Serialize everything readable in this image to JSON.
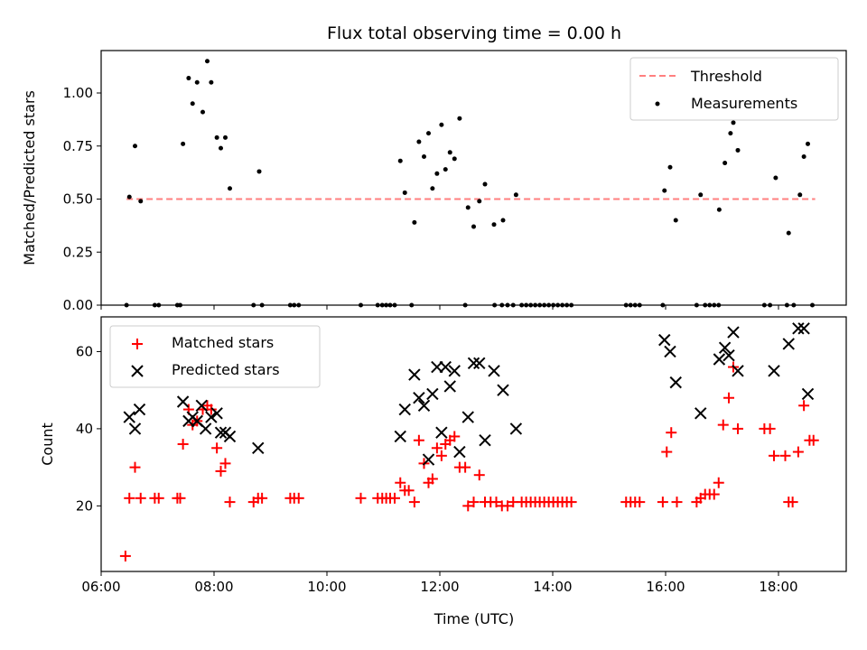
{
  "chart_data": [
    {
      "type": "scatter",
      "title": "Flux total observing time = 0.00 h",
      "xlabel": "",
      "ylabel": "Matched/Predicted stars",
      "xlim": [
        6.0,
        19.2
      ],
      "ylim": [
        0.0,
        1.2
      ],
      "yticks": [
        0.0,
        0.25,
        0.5,
        0.75,
        1.0
      ],
      "ytick_labels": [
        "0.00",
        "0.25",
        "0.50",
        "0.75",
        "1.00"
      ],
      "legend_position": "top-right",
      "threshold": {
        "name": "Threshold",
        "value": 0.5,
        "x_range": [
          6.45,
          18.65
        ],
        "color": "#ff7f7f"
      },
      "series": [
        {
          "name": "Measurements",
          "marker": "dot",
          "color": "#000000",
          "points": [
            [
              6.5,
              0.51
            ],
            [
              6.6,
              0.75
            ],
            [
              6.7,
              0.49
            ],
            [
              7.45,
              0.76
            ],
            [
              7.55,
              1.07
            ],
            [
              7.62,
              0.95
            ],
            [
              7.7,
              1.05
            ],
            [
              7.8,
              0.91
            ],
            [
              7.88,
              1.15
            ],
            [
              7.95,
              1.05
            ],
            [
              8.05,
              0.79
            ],
            [
              8.12,
              0.74
            ],
            [
              8.2,
              0.79
            ],
            [
              8.28,
              0.55
            ],
            [
              8.8,
              0.63
            ],
            [
              11.3,
              0.68
            ],
            [
              11.38,
              0.53
            ],
            [
              11.55,
              0.39
            ],
            [
              11.63,
              0.77
            ],
            [
              11.72,
              0.7
            ],
            [
              11.8,
              0.81
            ],
            [
              11.87,
              0.55
            ],
            [
              11.95,
              0.62
            ],
            [
              12.03,
              0.85
            ],
            [
              12.1,
              0.64
            ],
            [
              12.18,
              0.72
            ],
            [
              12.26,
              0.69
            ],
            [
              12.35,
              0.88
            ],
            [
              12.5,
              0.46
            ],
            [
              12.6,
              0.37
            ],
            [
              12.7,
              0.49
            ],
            [
              12.8,
              0.57
            ],
            [
              12.96,
              0.38
            ],
            [
              13.12,
              0.4
            ],
            [
              13.35,
              0.52
            ],
            [
              15.98,
              0.54
            ],
            [
              16.08,
              0.65
            ],
            [
              16.18,
              0.4
            ],
            [
              16.62,
              0.52
            ],
            [
              16.95,
              0.45
            ],
            [
              17.05,
              0.67
            ],
            [
              17.15,
              0.81
            ],
            [
              17.2,
              0.86
            ],
            [
              17.28,
              0.73
            ],
            [
              17.95,
              0.6
            ],
            [
              18.18,
              0.34
            ],
            [
              18.38,
              0.52
            ],
            [
              18.45,
              0.7
            ],
            [
              18.52,
              0.76
            ],
            [
              6.45,
              0
            ],
            [
              6.95,
              0
            ],
            [
              7.02,
              0
            ],
            [
              7.35,
              0
            ],
            [
              7.4,
              0
            ],
            [
              8.7,
              0
            ],
            [
              8.85,
              0
            ],
            [
              9.35,
              0
            ],
            [
              9.42,
              0
            ],
            [
              9.5,
              0
            ],
            [
              10.6,
              0
            ],
            [
              10.9,
              0
            ],
            [
              10.98,
              0
            ],
            [
              11.05,
              0
            ],
            [
              11.12,
              0
            ],
            [
              11.2,
              0
            ],
            [
              11.5,
              0
            ],
            [
              12.45,
              0
            ],
            [
              12.97,
              0
            ],
            [
              13.1,
              0
            ],
            [
              13.2,
              0
            ],
            [
              13.3,
              0
            ],
            [
              13.45,
              0
            ],
            [
              13.53,
              0
            ],
            [
              13.61,
              0
            ],
            [
              13.69,
              0
            ],
            [
              13.77,
              0
            ],
            [
              13.85,
              0
            ],
            [
              13.93,
              0
            ],
            [
              14.01,
              0
            ],
            [
              14.09,
              0
            ],
            [
              14.17,
              0
            ],
            [
              14.25,
              0
            ],
            [
              14.33,
              0
            ],
            [
              15.3,
              0
            ],
            [
              15.38,
              0
            ],
            [
              15.46,
              0
            ],
            [
              15.54,
              0
            ],
            [
              15.95,
              0
            ],
            [
              16.55,
              0
            ],
            [
              16.7,
              0
            ],
            [
              16.78,
              0
            ],
            [
              16.86,
              0
            ],
            [
              16.94,
              0
            ],
            [
              17.75,
              0
            ],
            [
              17.85,
              0
            ],
            [
              18.15,
              0
            ],
            [
              18.27,
              0
            ],
            [
              18.6,
              0
            ]
          ]
        }
      ]
    },
    {
      "type": "scatter",
      "title": "",
      "xlabel": "Time (UTC)",
      "ylabel": "Count",
      "xlim": [
        6.0,
        19.2
      ],
      "ylim": [
        3,
        69
      ],
      "yticks": [
        20,
        40,
        60
      ],
      "ytick_labels": [
        "20",
        "40",
        "60"
      ],
      "xticks": [
        6,
        8,
        10,
        12,
        14,
        16,
        18
      ],
      "xtick_labels": [
        "06:00",
        "08:00",
        "10:00",
        "12:00",
        "14:00",
        "16:00",
        "18:00"
      ],
      "legend_position": "top-left",
      "series": [
        {
          "name": "Matched stars",
          "marker": "plus",
          "color": "#ff0000",
          "points": [
            [
              6.43,
              7
            ],
            [
              6.5,
              22
            ],
            [
              6.6,
              30
            ],
            [
              6.7,
              22
            ],
            [
              6.95,
              22
            ],
            [
              7.02,
              22
            ],
            [
              7.35,
              22
            ],
            [
              7.4,
              22
            ],
            [
              7.45,
              36
            ],
            [
              7.55,
              45
            ],
            [
              7.62,
              41
            ],
            [
              7.7,
              42
            ],
            [
              7.8,
              45
            ],
            [
              7.88,
              46
            ],
            [
              7.95,
              45
            ],
            [
              8.05,
              35
            ],
            [
              8.12,
              29
            ],
            [
              8.2,
              31
            ],
            [
              8.28,
              21
            ],
            [
              8.7,
              21
            ],
            [
              8.78,
              22
            ],
            [
              8.85,
              22
            ],
            [
              9.35,
              22
            ],
            [
              9.42,
              22
            ],
            [
              9.5,
              22
            ],
            [
              10.6,
              22
            ],
            [
              10.9,
              22
            ],
            [
              10.98,
              22
            ],
            [
              11.05,
              22
            ],
            [
              11.12,
              22
            ],
            [
              11.2,
              22
            ],
            [
              11.3,
              26
            ],
            [
              11.38,
              24
            ],
            [
              11.45,
              24
            ],
            [
              11.55,
              21
            ],
            [
              11.63,
              37
            ],
            [
              11.72,
              31
            ],
            [
              11.8,
              26
            ],
            [
              11.87,
              27
            ],
            [
              11.95,
              35
            ],
            [
              12.03,
              33
            ],
            [
              12.1,
              36
            ],
            [
              12.18,
              37
            ],
            [
              12.26,
              38
            ],
            [
              12.35,
              30
            ],
            [
              12.45,
              30
            ],
            [
              12.5,
              20
            ],
            [
              12.6,
              21
            ],
            [
              12.7,
              28
            ],
            [
              12.8,
              21
            ],
            [
              12.9,
              21
            ],
            [
              13.0,
              21
            ],
            [
              13.1,
              20
            ],
            [
              13.2,
              20
            ],
            [
              13.3,
              21
            ],
            [
              13.45,
              21
            ],
            [
              13.53,
              21
            ],
            [
              13.61,
              21
            ],
            [
              13.69,
              21
            ],
            [
              13.77,
              21
            ],
            [
              13.85,
              21
            ],
            [
              13.93,
              21
            ],
            [
              14.01,
              21
            ],
            [
              14.09,
              21
            ],
            [
              14.17,
              21
            ],
            [
              14.25,
              21
            ],
            [
              14.33,
              21
            ],
            [
              15.3,
              21
            ],
            [
              15.38,
              21
            ],
            [
              15.46,
              21
            ],
            [
              15.54,
              21
            ],
            [
              15.95,
              21
            ],
            [
              16.02,
              34
            ],
            [
              16.1,
              39
            ],
            [
              16.2,
              21
            ],
            [
              16.55,
              21
            ],
            [
              16.62,
              22
            ],
            [
              16.7,
              23
            ],
            [
              16.78,
              23
            ],
            [
              16.86,
              23
            ],
            [
              16.94,
              26
            ],
            [
              17.02,
              41
            ],
            [
              17.12,
              48
            ],
            [
              17.2,
              56
            ],
            [
              17.28,
              40
            ],
            [
              17.75,
              40
            ],
            [
              17.85,
              40
            ],
            [
              17.92,
              33
            ],
            [
              18.12,
              33
            ],
            [
              18.18,
              21
            ],
            [
              18.25,
              21
            ],
            [
              18.35,
              34
            ],
            [
              18.45,
              46
            ],
            [
              18.55,
              37
            ],
            [
              18.62,
              37
            ]
          ]
        },
        {
          "name": "Predicted stars",
          "marker": "x",
          "color": "#000000",
          "points": [
            [
              6.5,
              43
            ],
            [
              6.6,
              40
            ],
            [
              6.68,
              45
            ],
            [
              7.45,
              47
            ],
            [
              7.55,
              42
            ],
            [
              7.62,
              43
            ],
            [
              7.7,
              42
            ],
            [
              7.78,
              46
            ],
            [
              7.85,
              40
            ],
            [
              7.95,
              43
            ],
            [
              8.05,
              44
            ],
            [
              8.12,
              39
            ],
            [
              8.2,
              39
            ],
            [
              8.28,
              38
            ],
            [
              8.78,
              35
            ],
            [
              11.3,
              38
            ],
            [
              11.38,
              45
            ],
            [
              11.55,
              54
            ],
            [
              11.63,
              48
            ],
            [
              11.72,
              46
            ],
            [
              11.8,
              32
            ],
            [
              11.87,
              49
            ],
            [
              11.95,
              56
            ],
            [
              12.03,
              39
            ],
            [
              12.1,
              56
            ],
            [
              12.18,
              51
            ],
            [
              12.26,
              55
            ],
            [
              12.35,
              34
            ],
            [
              12.5,
              43
            ],
            [
              12.6,
              57
            ],
            [
              12.7,
              57
            ],
            [
              12.8,
              37
            ],
            [
              12.96,
              55
            ],
            [
              13.12,
              50
            ],
            [
              13.35,
              40
            ],
            [
              15.98,
              63
            ],
            [
              16.08,
              60
            ],
            [
              16.18,
              52
            ],
            [
              16.62,
              44
            ],
            [
              16.95,
              58
            ],
            [
              17.05,
              61
            ],
            [
              17.12,
              59
            ],
            [
              17.2,
              65
            ],
            [
              17.28,
              55
            ],
            [
              17.92,
              55
            ],
            [
              18.18,
              62
            ],
            [
              18.35,
              66
            ],
            [
              18.45,
              66
            ],
            [
              18.52,
              49
            ]
          ]
        }
      ]
    }
  ]
}
